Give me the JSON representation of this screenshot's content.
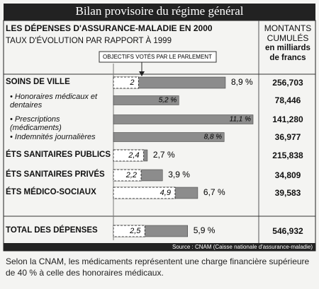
{
  "header": {
    "title": "Bilan provisoire du régime général"
  },
  "chart_data": {
    "type": "bar",
    "title": "LES DÉPENSES D'ASSURANCE-MALADIE EN 2000",
    "subtitle": "TAUX D'ÉVOLUTION PAR RAPPORT À 1999",
    "objective_label": "OBJECTIFS VOTÉS PAR LE PARLEMENT",
    "amount_header": "MONTANTS CUMULÉS",
    "amount_unit": "en milliards de francs",
    "categories": [
      "SOINS DE VILLE",
      "Honoraires médicaux et dentaires",
      "Prescriptions (médicaments)",
      "Indemnités journalières",
      "ÉTS SANITAIRES PUBLICS",
      "ÉTS SANITAIRES PRIVÉS",
      "ÉTS MÉDICO-SOCIAUX",
      "TOTAL DES DÉPENSES"
    ],
    "values": [
      8.9,
      5.2,
      11.1,
      8.8,
      2.7,
      3.9,
      6.7,
      5.9
    ],
    "value_labels": [
      "8,9 %",
      "5,2 %",
      "11,1 %",
      "8,8 %",
      "2,7 %",
      "3,9 %",
      "6,7 %",
      "5,9 %"
    ],
    "objectives": [
      2,
      null,
      null,
      null,
      2.4,
      2.2,
      4.9,
      2.5
    ],
    "objective_labels": [
      "2",
      null,
      null,
      null,
      "2,4",
      "2,2",
      "4,9",
      "2,5"
    ],
    "amounts": [
      "256,703",
      "78,446",
      "141,280",
      "36,977",
      "215,838",
      "34,809",
      "39,583",
      "546,932"
    ],
    "color": "#8c8c8c"
  },
  "source": "Source : CNAM (Caisse nationale d'assurance-maladie)",
  "note": "Selon la CNAM, les médicaments représentent une charge financière supérieure de 40 % à celle des honoraires médicaux."
}
